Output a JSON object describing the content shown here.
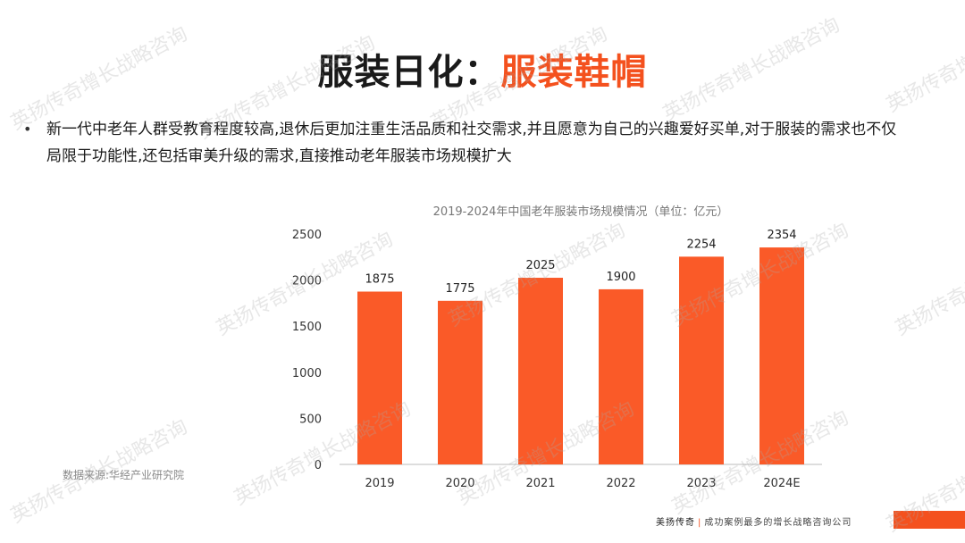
{
  "header": {
    "title_main": "服装日化：",
    "title_accent": "服装鞋帽"
  },
  "bullet": {
    "marker": "•",
    "text": "新一代中老年人群受教育程度较高,退休后更加注重生活品质和社交需求,并且愿意为自己的兴趣爱好买单,对于服装的需求也不仅局限于功能性,还包括审美升级的需求,直接推动老年服装市场规模扩大"
  },
  "source": "数据来源:华经产业研究院",
  "footer": {
    "brand": "美扬传奇",
    "separator": "|",
    "tagline": "成功案例最多的增长战略咨询公司"
  },
  "watermark": "英扬传奇增长战略咨询",
  "colors": {
    "accent": "#f4511e",
    "bar": "#fa5a28"
  },
  "chart_data": {
    "type": "bar",
    "title": "2019-2024年中国老年服装市场规模情况（单位：亿元）",
    "categories": [
      "2019",
      "2020",
      "2021",
      "2022",
      "2023",
      "2024E"
    ],
    "values": [
      1875,
      1775,
      2025,
      1900,
      2254,
      2354
    ],
    "data_labels": [
      "1875",
      "1775",
      "2025",
      "1900",
      "2254",
      "2354"
    ],
    "ylim": [
      0,
      2500
    ],
    "yticks": [
      0,
      500,
      1000,
      1500,
      2000,
      2500
    ],
    "xlabel": "",
    "ylabel": "",
    "grid": false,
    "legend": "none"
  }
}
